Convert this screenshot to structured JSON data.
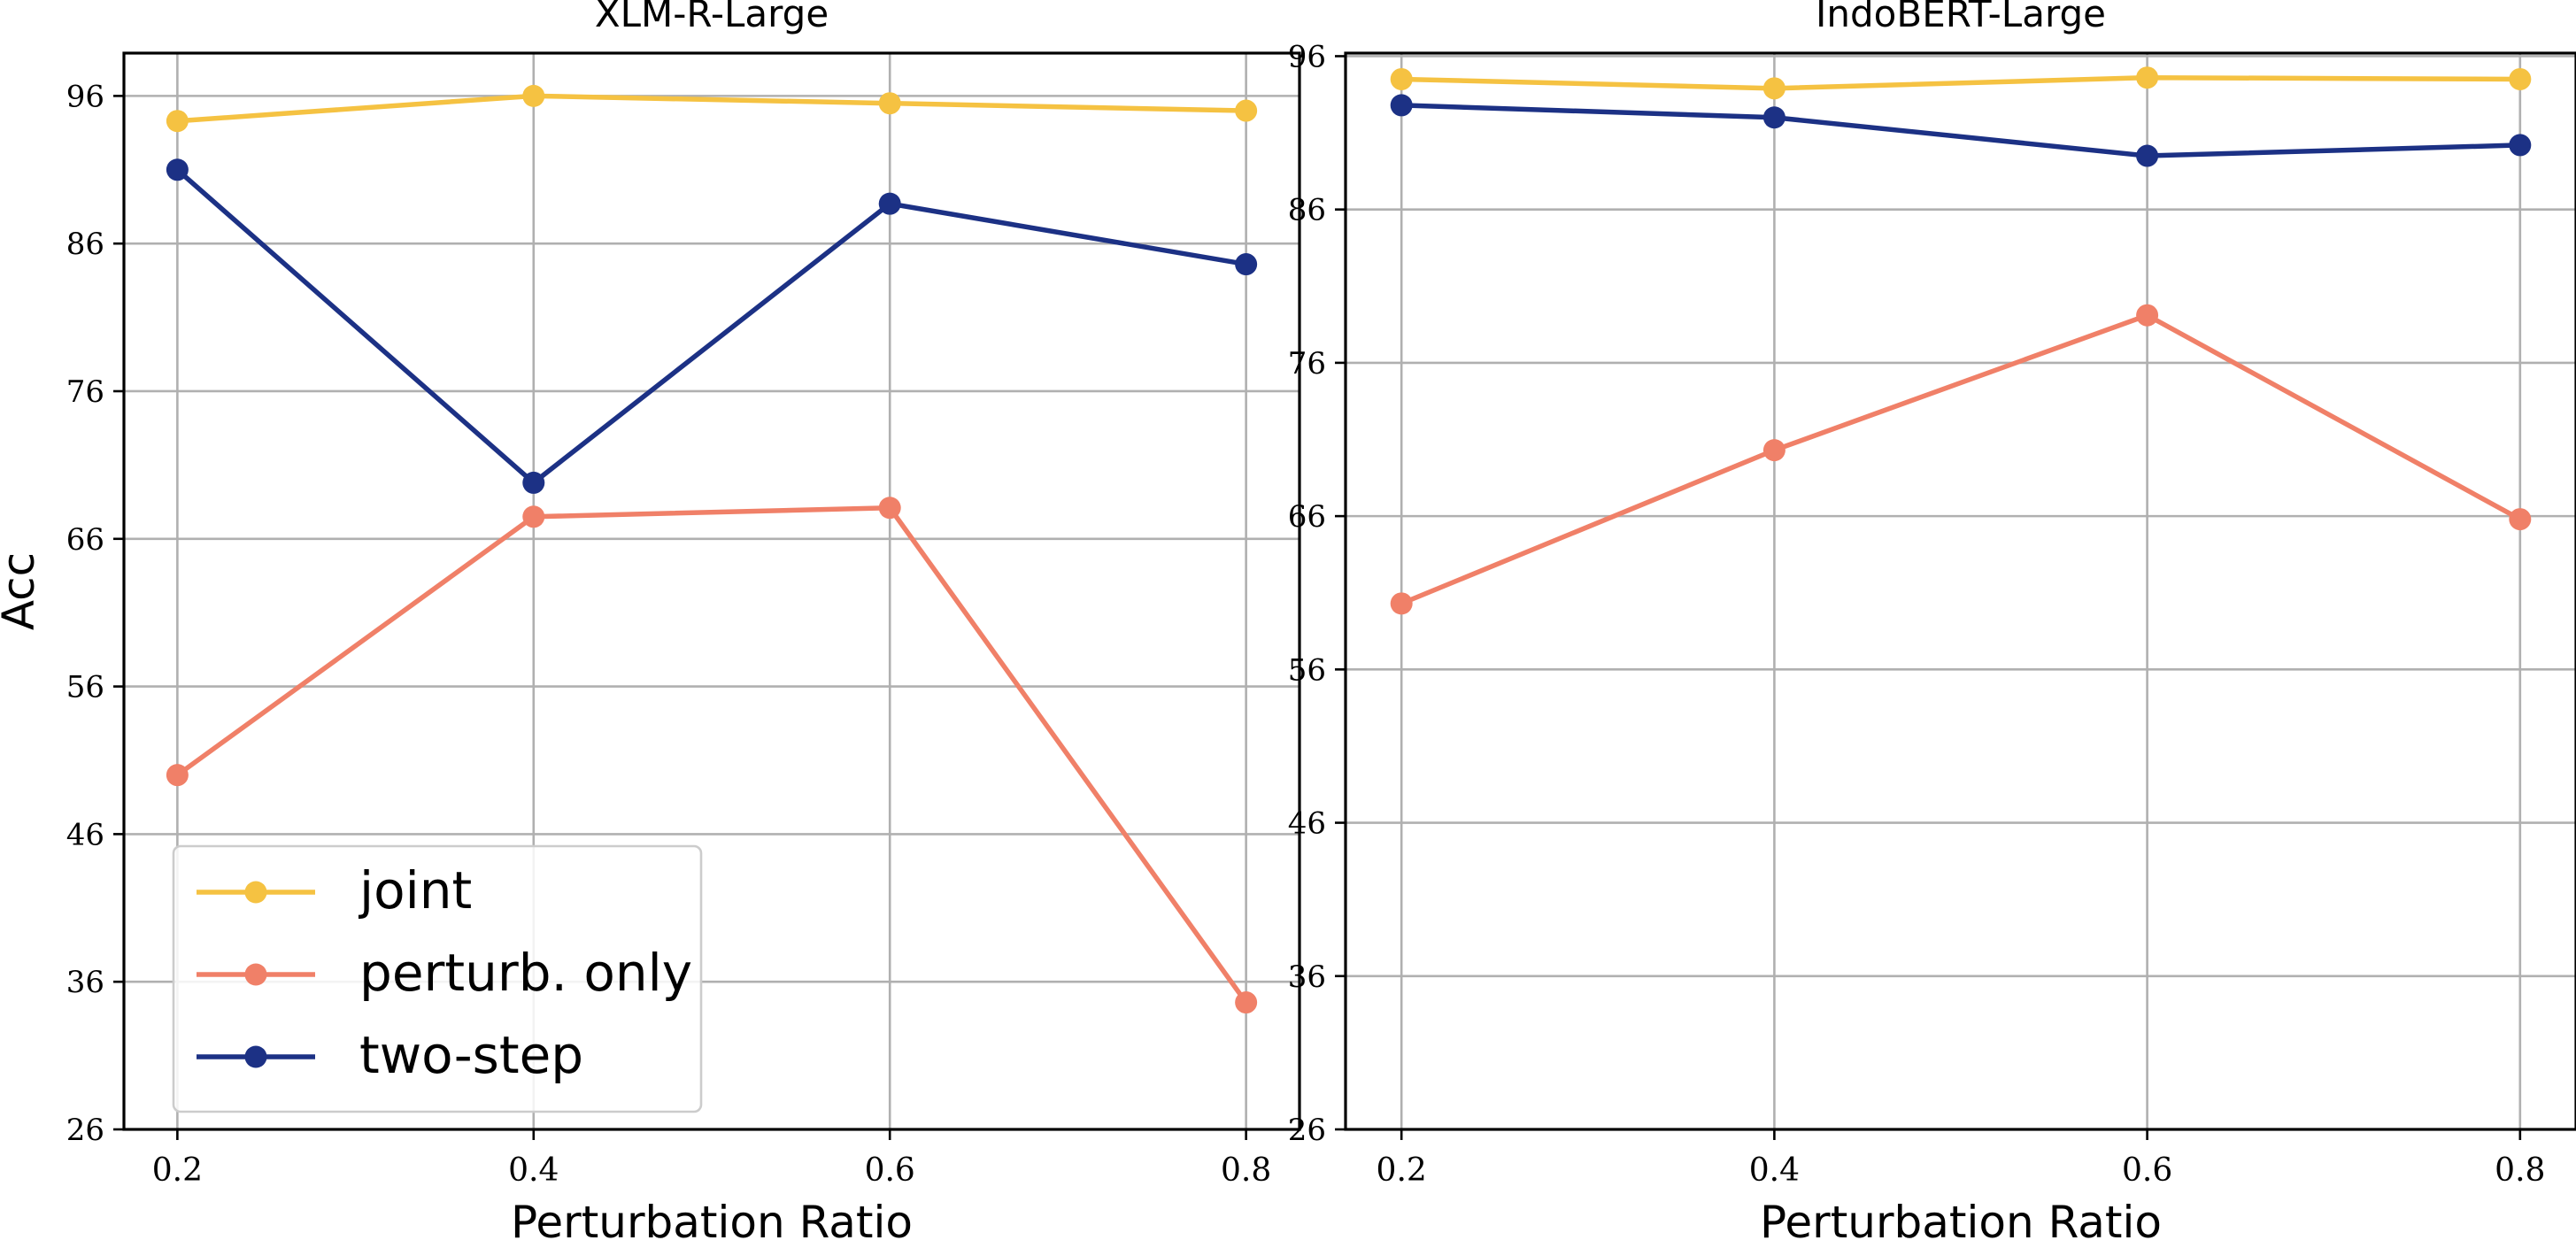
{
  "chart_data": [
    {
      "type": "line",
      "title": "XLM-R-Large",
      "xlabel": "Perturbation Ratio",
      "ylabel": "Acc",
      "x": [
        0.2,
        0.4,
        0.6,
        0.8
      ],
      "x_tick_labels": [
        "0.2",
        "0.4",
        "0.6",
        "0.8"
      ],
      "ylim": [
        26,
        98.9
      ],
      "y_ticks": [
        26,
        36,
        46,
        56,
        66,
        76,
        86,
        96
      ],
      "y_tick_labels": [
        "26",
        "36",
        "46",
        "56",
        "66",
        "76",
        "86",
        "96"
      ],
      "grid": true,
      "legend_position": "lower-left",
      "series": [
        {
          "name": "joint",
          "color": "#F5C242",
          "values": [
            94.3,
            96.0,
            95.5,
            95.0
          ]
        },
        {
          "name": "perturb. only",
          "color": "#F08068",
          "values": [
            50.0,
            67.5,
            68.1,
            34.6
          ]
        },
        {
          "name": "two-step",
          "color": "#1C3185",
          "values": [
            91.0,
            69.8,
            88.7,
            84.6
          ]
        }
      ]
    },
    {
      "type": "line",
      "title": "IndoBERT-Large",
      "xlabel": "Perturbation Ratio",
      "ylabel": "",
      "x": [
        0.2,
        0.4,
        0.6,
        0.8
      ],
      "x_tick_labels": [
        "0.2",
        "0.4",
        "0.6",
        "0.8"
      ],
      "ylim": [
        26,
        96.2
      ],
      "y_ticks": [
        26,
        36,
        46,
        56,
        66,
        76,
        86,
        96
      ],
      "y_tick_labels": [
        "26",
        "36",
        "46",
        "56",
        "66",
        "76",
        "86",
        "96"
      ],
      "grid": true,
      "series": [
        {
          "name": "joint",
          "color": "#F5C242",
          "values": [
            94.5,
            93.9,
            94.6,
            94.5
          ]
        },
        {
          "name": "perturb. only",
          "color": "#F08068",
          "values": [
            60.3,
            70.3,
            79.1,
            65.8
          ]
        },
        {
          "name": "two-step",
          "color": "#1C3185",
          "values": [
            92.8,
            92.0,
            89.5,
            90.2
          ]
        }
      ]
    }
  ]
}
